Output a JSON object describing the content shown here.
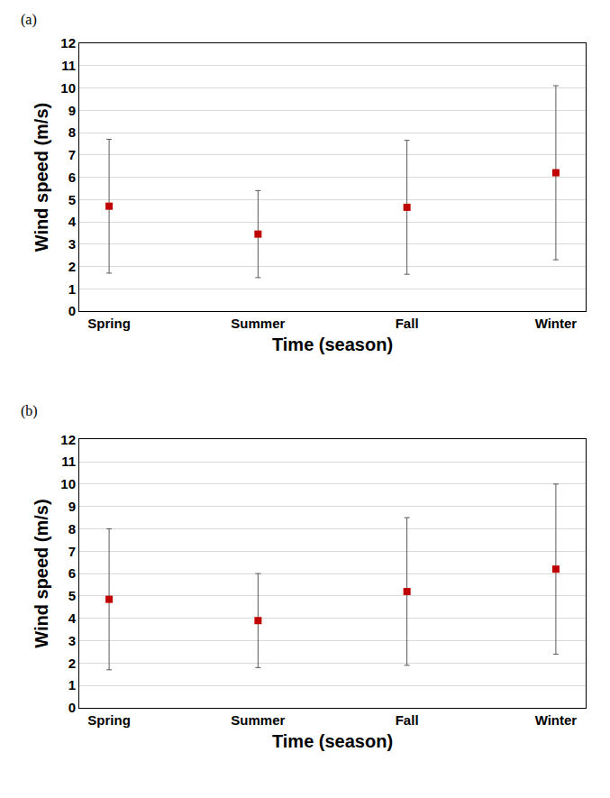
{
  "chart_data": [
    {
      "type": "scatter",
      "title": "(a)",
      "x_label": "Time (season)",
      "y_label": "Wind speed (m/s)",
      "categories": [
        "Spring",
        "Summer",
        "Fall",
        "Winter"
      ],
      "values": [
        4.7,
        3.45,
        4.65,
        6.2
      ],
      "errors": [
        3.0,
        1.95,
        3.0,
        3.9
      ],
      "color": "#c00000",
      "marker": "square",
      "ylim": [
        0,
        12
      ],
      "yticks": [
        0,
        1,
        2,
        3,
        4,
        5,
        6,
        7,
        8,
        9,
        10,
        11,
        12
      ],
      "grid": true
    },
    {
      "type": "scatter",
      "title": "(b)",
      "x_label": "Time (season)",
      "y_label": "Wind speed (m/s)",
      "categories": [
        "Spring",
        "Summer",
        "Fall",
        "Winter"
      ],
      "values": [
        4.85,
        3.9,
        5.2,
        6.2
      ],
      "errors": [
        3.15,
        2.1,
        3.3,
        3.8
      ],
      "color": "#c00000",
      "marker": "square",
      "ylim": [
        0,
        12
      ],
      "yticks": [
        0,
        1,
        2,
        3,
        4,
        5,
        6,
        7,
        8,
        9,
        10,
        11,
        12
      ],
      "grid": true
    }
  ]
}
